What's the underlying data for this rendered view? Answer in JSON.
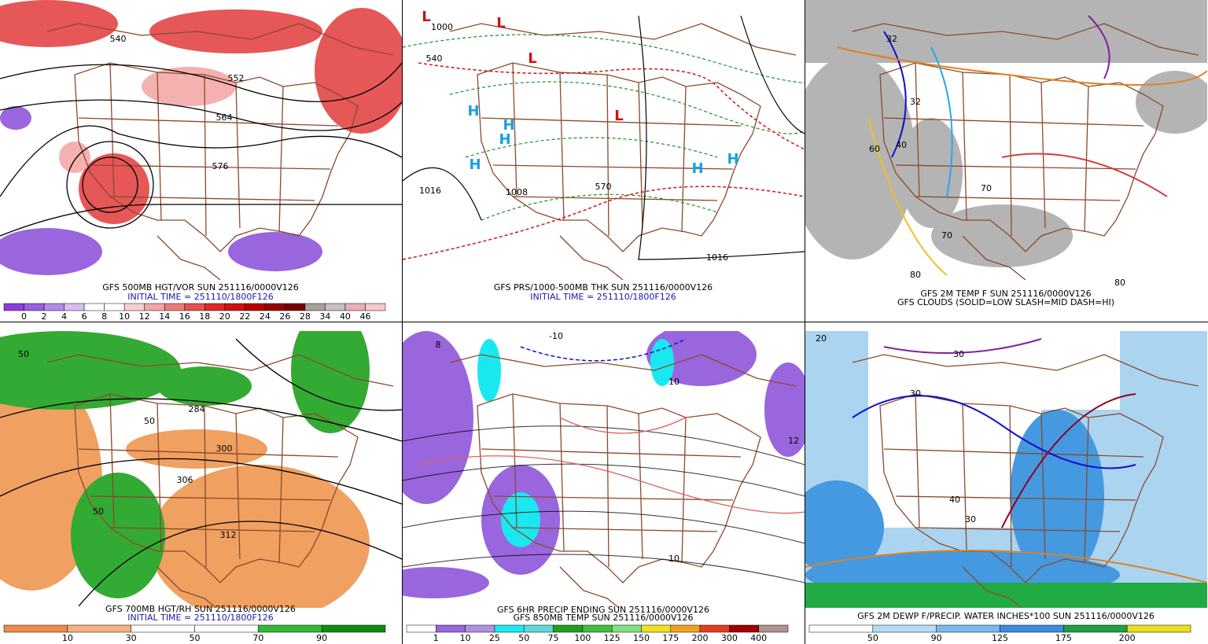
{
  "panels": [
    {
      "captions": [
        {
          "text": "GFS 500MB HGT/VOR SUN 251116/0000V126",
          "color": "#000000"
        },
        {
          "text": "INITIAL TIME = 251110/1800F126",
          "color": "#1a1aa8"
        }
      ],
      "legend": {
        "labels": [
          0,
          2,
          4,
          6,
          8,
          10,
          12,
          14,
          16,
          18,
          20,
          22,
          24,
          26,
          28,
          34,
          40,
          46
        ],
        "colors": [
          "#8a3de0",
          "#9b5fe6",
          "#b48ae8",
          "#d6c0f2",
          "#ffffff",
          "#ffffff",
          "#f8d0d0",
          "#f2a6a6",
          "#ec7c7c",
          "#e65050",
          "#e02828",
          "#d01010",
          "#b80000",
          "#980000",
          "#780000",
          "#a8a0a0",
          "#c8c0c0",
          "#e8b0b8",
          "#f8c8d0"
        ]
      },
      "map_labels": [
        "540",
        "552",
        "564",
        "576"
      ]
    },
    {
      "captions": [
        {
          "text": "GFS PRS/1000-500MB THK SUN 251116/0000V126",
          "color": "#000000"
        },
        {
          "text": "INITIAL TIME = 251110/1800F126",
          "color": "#1a1aa8"
        }
      ],
      "map_labels": [
        "L",
        "L",
        "L",
        "L",
        "H",
        "H",
        "H",
        "H",
        "H",
        "H",
        "1000",
        "1008",
        "1016",
        "1016",
        "540",
        "570"
      ]
    },
    {
      "captions": [
        {
          "text": "GFS 2M TEMP F SUN 251116/0000V126",
          "color": "#000000"
        },
        {
          "text": "GFS CLOUDS (SOLID=LOW SLASH=MID DASH=HI)",
          "color": "#000000"
        }
      ],
      "map_labels": [
        "32",
        "32",
        "40",
        "60",
        "70",
        "70",
        "80",
        "80"
      ]
    },
    {
      "captions": [
        {
          "text": "GFS 700MB HGT/RH SUN 251116/0000V126",
          "color": "#000000"
        },
        {
          "text": "INITIAL TIME = 251110/1800F126",
          "color": "#1a1aa8"
        }
      ],
      "legend": {
        "labels": [
          10,
          30,
          50,
          70,
          90
        ],
        "colors": [
          "#f08a4a",
          "#f5b080",
          "#ffffff",
          "#ffffff",
          "#33b833",
          "#108c10"
        ]
      },
      "map_labels": [
        "50",
        "50",
        "300",
        "306",
        "312",
        "284",
        "50"
      ]
    },
    {
      "captions": [
        {
          "text": "GFS 6HR PRECIP ENDING SUN 251116/0000V126",
          "color": "#000000"
        },
        {
          "text": "GFS 850MB TEMP SUN 251116/0000V126",
          "color": "#000000"
        }
      ],
      "legend": {
        "labels": [
          1,
          10,
          25,
          50,
          75,
          100,
          125,
          150,
          175,
          200,
          300,
          400
        ],
        "colors": [
          "#ffffff",
          "#9966dd",
          "#b090e0",
          "#1ae8f0",
          "#60d8d8",
          "#20a020",
          "#40c040",
          "#80e080",
          "#f0e020",
          "#f0a020",
          "#e04020",
          "#a00000",
          "#b09090"
        ]
      },
      "map_labels": [
        "-10",
        "8",
        "10",
        "10",
        "12"
      ]
    },
    {
      "captions": [
        {
          "text": "GFS 2M DEWP F/PRECIP. WATER INCHES*100 SUN 251116/0000V126",
          "color": "#000000"
        }
      ],
      "legend": {
        "labels": [
          50,
          90,
          125,
          175,
          200
        ],
        "colors": [
          "#ffffff",
          "#b4dcf4",
          "#78b8ec",
          "#3c8ce0",
          "#20a040",
          "#e8e020"
        ]
      },
      "map_labels": [
        "20",
        "30",
        "30",
        "40",
        "30"
      ]
    }
  ]
}
